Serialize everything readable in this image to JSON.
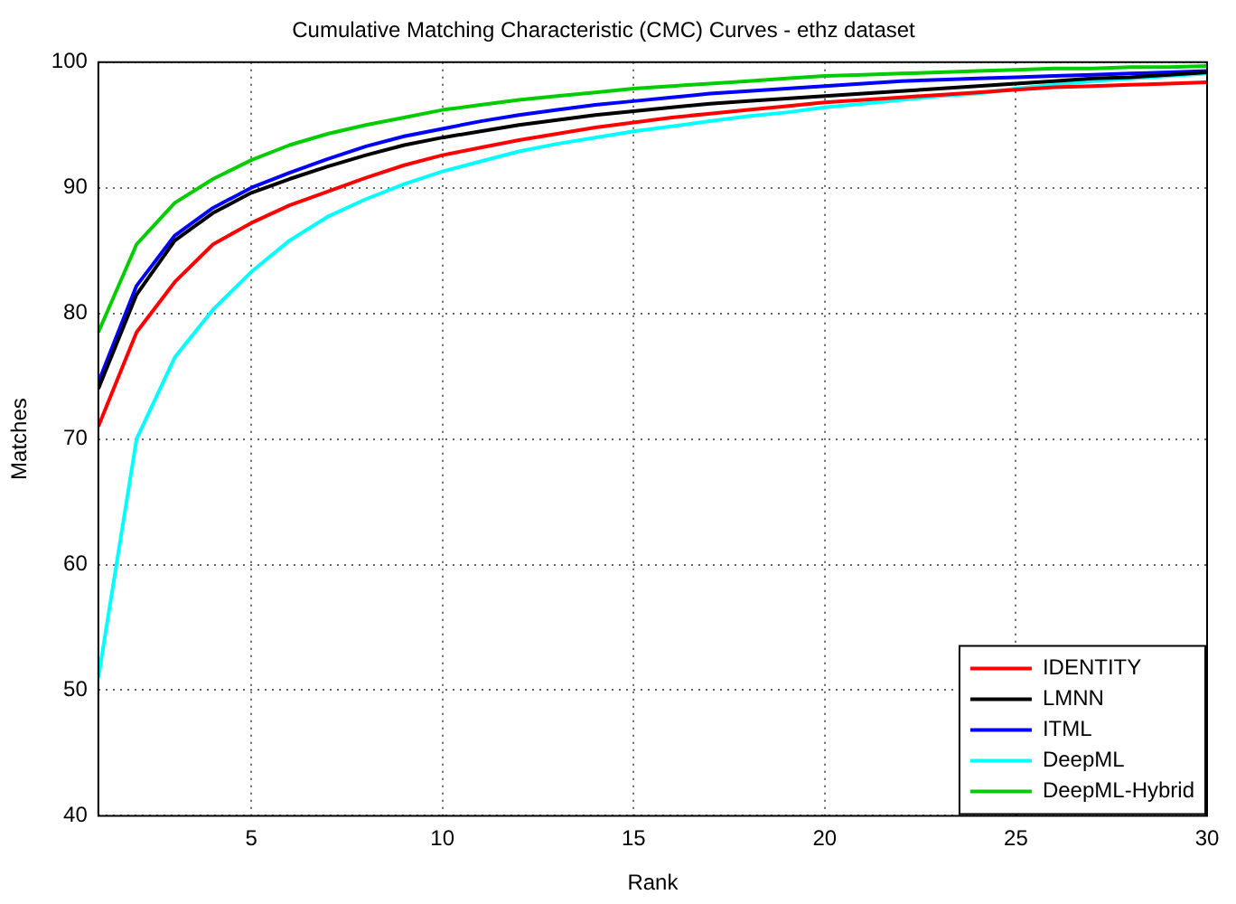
{
  "chart_data": {
    "type": "line",
    "title": "Cumulative Matching Characteristic (CMC) Curves - ethz dataset",
    "xlabel": "Rank",
    "ylabel": "Matches",
    "x": [
      1,
      2,
      3,
      4,
      5,
      6,
      7,
      8,
      9,
      10,
      11,
      12,
      13,
      14,
      15,
      16,
      17,
      18,
      19,
      20,
      21,
      22,
      23,
      24,
      25,
      26,
      27,
      28,
      29,
      30
    ],
    "series": [
      {
        "name": "IDENTITY",
        "color": "#ff0000",
        "values": [
          71,
          78.5,
          82.5,
          85.5,
          87.2,
          88.6,
          89.7,
          90.8,
          91.8,
          92.6,
          93.2,
          93.8,
          94.3,
          94.8,
          95.2,
          95.6,
          95.9,
          96.2,
          96.5,
          96.8,
          97.0,
          97.2,
          97.4,
          97.6,
          97.8,
          98.0,
          98.1,
          98.2,
          98.3,
          98.4
        ]
      },
      {
        "name": "LMNN",
        "color": "#000000",
        "values": [
          74,
          81.5,
          85.8,
          88.0,
          89.6,
          90.7,
          91.7,
          92.6,
          93.4,
          94.0,
          94.5,
          95.0,
          95.4,
          95.8,
          96.1,
          96.4,
          96.7,
          96.9,
          97.1,
          97.3,
          97.5,
          97.7,
          97.9,
          98.1,
          98.3,
          98.5,
          98.7,
          98.8,
          99.0,
          99.2
        ]
      },
      {
        "name": "ITML",
        "color": "#0000ff",
        "values": [
          74.5,
          82.2,
          86.2,
          88.4,
          90.0,
          91.2,
          92.3,
          93.3,
          94.1,
          94.7,
          95.3,
          95.8,
          96.2,
          96.6,
          96.9,
          97.2,
          97.5,
          97.7,
          97.9,
          98.1,
          98.3,
          98.5,
          98.6,
          98.7,
          98.8,
          98.9,
          99.0,
          99.1,
          99.2,
          99.3
        ]
      },
      {
        "name": "DeepML",
        "color": "#00ffff",
        "values": [
          51,
          70,
          76.5,
          80.3,
          83.3,
          85.8,
          87.7,
          89.1,
          90.3,
          91.3,
          92.1,
          92.9,
          93.5,
          94.0,
          94.5,
          94.9,
          95.3,
          95.7,
          96.0,
          96.4,
          96.7,
          97.0,
          97.3,
          97.5,
          97.9,
          98.2,
          98.5,
          98.7,
          98.9,
          99.1
        ]
      },
      {
        "name": "DeepML-Hybrid",
        "color": "#00cc00",
        "values": [
          78.5,
          85.5,
          88.8,
          90.7,
          92.2,
          93.4,
          94.3,
          95.0,
          95.6,
          96.2,
          96.6,
          97.0,
          97.3,
          97.6,
          97.9,
          98.1,
          98.3,
          98.5,
          98.7,
          98.9,
          99.0,
          99.1,
          99.2,
          99.3,
          99.4,
          99.5,
          99.5,
          99.6,
          99.6,
          99.7
        ]
      }
    ],
    "xlim": [
      1,
      30
    ],
    "xticks": [
      5,
      10,
      15,
      20,
      25,
      30
    ],
    "ylim": [
      40,
      100
    ],
    "yticks": [
      40,
      50,
      60,
      70,
      80,
      90,
      100
    ],
    "grid": true,
    "legend": "bottom right",
    "marker": "none",
    "line_style": "solid"
  }
}
